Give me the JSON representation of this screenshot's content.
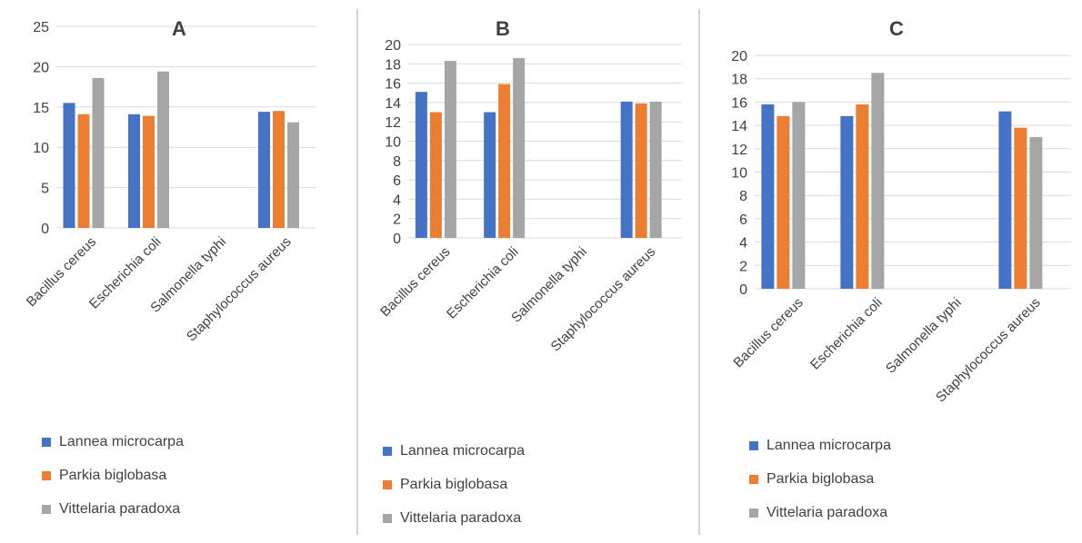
{
  "colors": {
    "series_0": "#4472c4",
    "series_1": "#ed7d31",
    "series_2": "#a5a5a5",
    "gridline": "#d9d9d9",
    "text": "#404040"
  },
  "chart_data": [
    {
      "type": "bar",
      "title": "A",
      "categories": [
        "Bacillus cereus",
        "Escherichia coli",
        "Salmonella typhi",
        "Staphylococcus aureus"
      ],
      "series": [
        {
          "name": "Lannea microcarpa",
          "values": [
            15.5,
            14.1,
            0,
            14.4
          ]
        },
        {
          "name": "Parkia biglobasa",
          "values": [
            14.1,
            13.9,
            0,
            14.5
          ]
        },
        {
          "name": "Vittelaria paradoxa",
          "values": [
            18.6,
            19.4,
            0,
            13.1
          ]
        }
      ],
      "ylim": [
        0,
        25
      ],
      "yticks": [
        "0",
        "5",
        "10",
        "15",
        "20",
        "25"
      ],
      "grid": true,
      "legend": "bottom"
    },
    {
      "type": "bar",
      "title": "B",
      "categories": [
        "Bacillus cereus",
        "Escherichia coli",
        "Salmonella typhi",
        "Staphylococcus aureus"
      ],
      "series": [
        {
          "name": "Lannea microcarpa",
          "values": [
            15.1,
            13.0,
            0,
            14.1
          ]
        },
        {
          "name": "Parkia biglobasa",
          "values": [
            13.0,
            15.9,
            0,
            13.9
          ]
        },
        {
          "name": "Vittelaria paradoxa",
          "values": [
            18.3,
            18.6,
            0,
            14.1
          ]
        }
      ],
      "ylim": [
        0,
        20
      ],
      "yticks": [
        "0",
        "2",
        "4",
        "6",
        "8",
        "10",
        "12",
        "14",
        "16",
        "18",
        "20"
      ],
      "grid": true,
      "legend": "bottom"
    },
    {
      "type": "bar",
      "title": "C",
      "categories": [
        "Bacillus cereus",
        "Escherichia coli",
        "Salmonella typhi",
        "Staphylococcus aureus"
      ],
      "series": [
        {
          "name": "Lannea microcarpa",
          "values": [
            15.8,
            14.8,
            0,
            15.2
          ]
        },
        {
          "name": "Parkia biglobasa",
          "values": [
            14.8,
            15.8,
            0,
            13.8
          ]
        },
        {
          "name": "Vittelaria paradoxa",
          "values": [
            16.0,
            18.5,
            0,
            13.0
          ]
        }
      ],
      "ylim": [
        0,
        20
      ],
      "yticks": [
        "0",
        "2",
        "4",
        "6",
        "8",
        "10",
        "12",
        "14",
        "16",
        "18",
        "20"
      ],
      "grid": true,
      "legend": "bottom"
    }
  ]
}
